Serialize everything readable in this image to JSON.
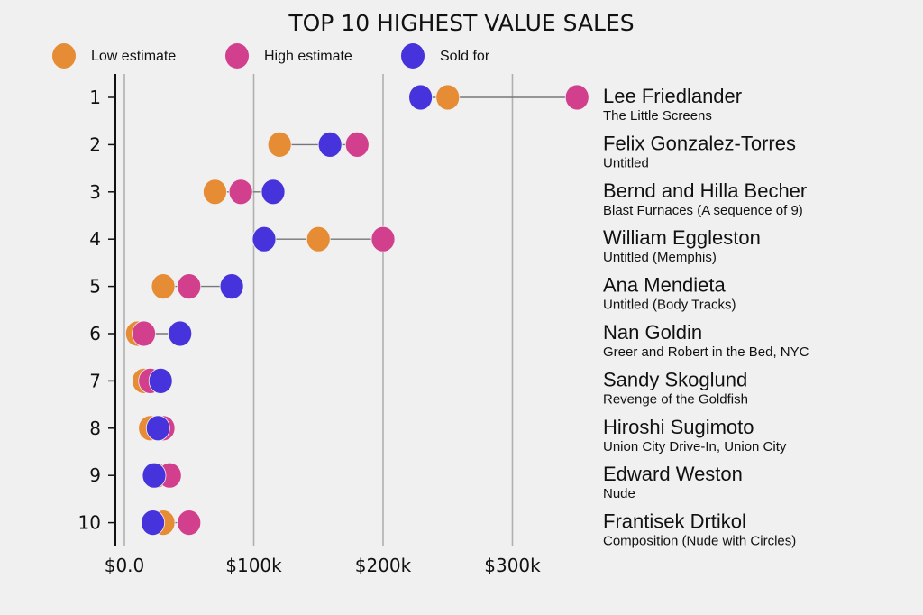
{
  "chart_data": {
    "type": "scatter",
    "subtype": "dumbbell",
    "title": "TOP 10 HIGHEST VALUE SALES",
    "xlabel": "",
    "ylabel": "",
    "xlim": [
      -5000,
      355000
    ],
    "grid": "vertical",
    "legend_position": "top-left",
    "xticks": [
      {
        "value": 0,
        "label": "$0.0"
      },
      {
        "value": 100000,
        "label": "$100k"
      },
      {
        "value": 200000,
        "label": "$200k"
      },
      {
        "value": 300000,
        "label": "$300k"
      }
    ],
    "series": [
      {
        "name": "Low estimate",
        "key": "low",
        "color": "#e68c35"
      },
      {
        "name": "High estimate",
        "key": "high",
        "color": "#d23f8c"
      },
      {
        "name": "Sold for",
        "key": "sold",
        "color": "#4733dc"
      }
    ],
    "rows": [
      {
        "rank": "1",
        "artist": "Lee Friedlander",
        "work": "The Little Screens",
        "low": 250000,
        "high": 350000,
        "sold": 229000
      },
      {
        "rank": "2",
        "artist": "Felix Gonzalez-Torres",
        "work": "Untitled",
        "low": 120000,
        "high": 180000,
        "sold": 159000
      },
      {
        "rank": "3",
        "artist": "Bernd and Hilla Becher",
        "work": "Blast Furnaces (A sequence of 9)",
        "low": 70000,
        "high": 90000,
        "sold": 115000
      },
      {
        "rank": "4",
        "artist": "William Eggleston",
        "work": "Untitled (Memphis)",
        "low": 150000,
        "high": 200000,
        "sold": 108000
      },
      {
        "rank": "5",
        "artist": "Ana Mendieta",
        "work": "Untitled (Body Tracks)",
        "low": 30000,
        "high": 50000,
        "sold": 83000
      },
      {
        "rank": "6",
        "artist": "Nan Goldin",
        "work": "Greer and Robert in the Bed, NYC",
        "low": 10000,
        "high": 15000,
        "sold": 43000
      },
      {
        "rank": "7",
        "artist": "Sandy Skoglund",
        "work": "Revenge of the Goldfish",
        "low": 15000,
        "high": 20000,
        "sold": 28000
      },
      {
        "rank": "8",
        "artist": "Hiroshi Sugimoto",
        "work": "Union City Drive-In, Union City",
        "low": 20000,
        "high": 30000,
        "sold": 26000
      },
      {
        "rank": "9",
        "artist": "Edward Weston",
        "work": "Nude",
        "low": 25000,
        "high": 35000,
        "sold": 23000
      },
      {
        "rank": "10",
        "artist": "Frantisek Drtikol",
        "work": "Composition (Nude with Circles)",
        "low": 30000,
        "high": 50000,
        "sold": 22000
      }
    ]
  }
}
